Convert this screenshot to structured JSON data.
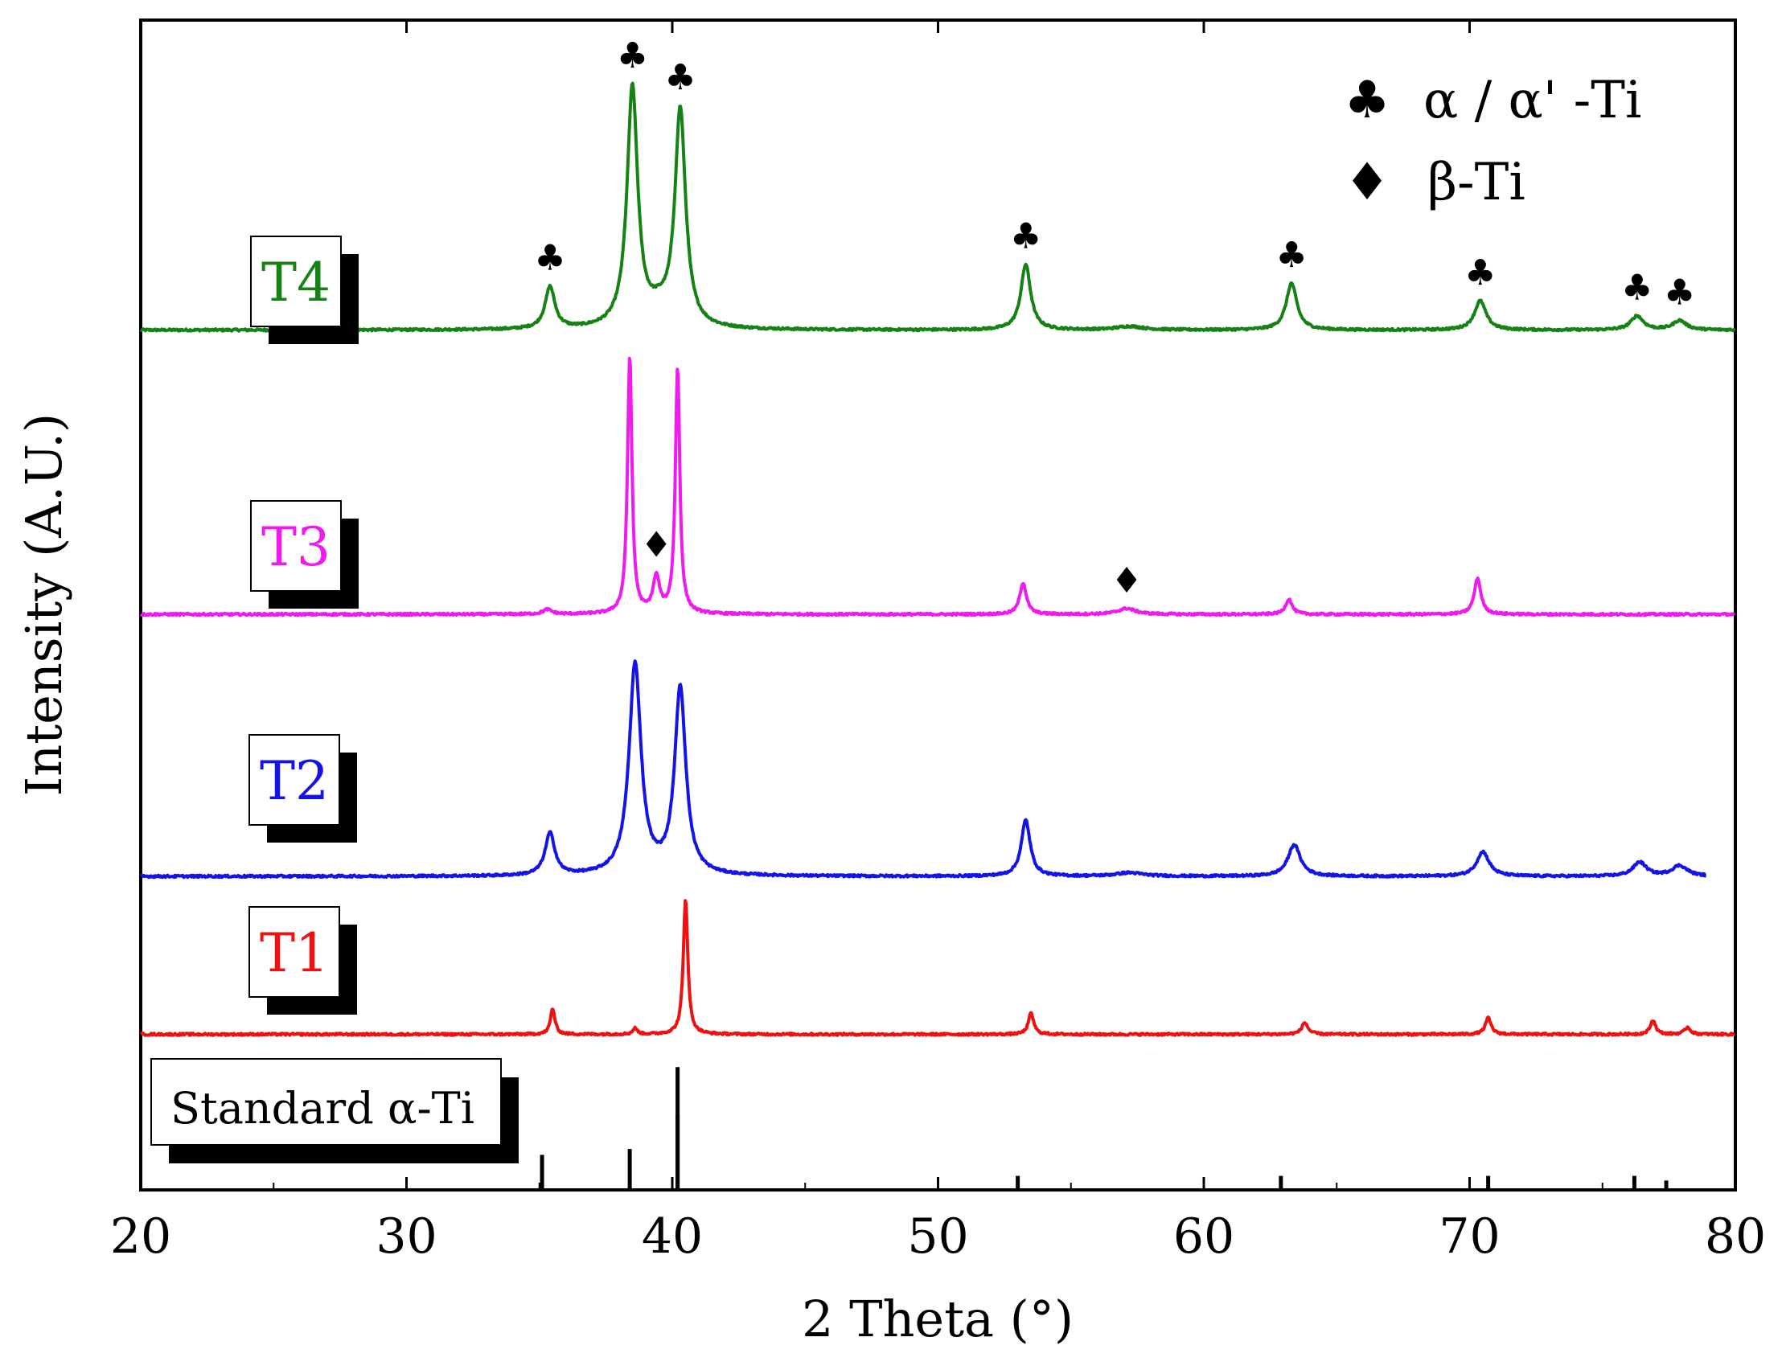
{
  "chart_data": {
    "type": "line",
    "title": "",
    "xlabel": "2 Theta (°)",
    "ylabel": "Intensity (A.U.)",
    "xlim": [
      20,
      80
    ],
    "xticks": [
      20,
      30,
      40,
      50,
      60,
      70,
      80
    ],
    "yticks": [],
    "series": [
      {
        "name": "T4",
        "color": "#168216",
        "offset": 0.735,
        "peaks": [
          {
            "x": 35.4,
            "h": 0.036,
            "w": 0.22
          },
          {
            "x": 38.5,
            "h": 0.205,
            "w": 0.24
          },
          {
            "x": 40.3,
            "h": 0.185,
            "w": 0.24
          },
          {
            "x": 39.5,
            "h": 0.012,
            "w": 0.5
          },
          {
            "x": 53.3,
            "h": 0.056,
            "w": 0.22
          },
          {
            "x": 57.2,
            "h": 0.003,
            "w": 0.6
          },
          {
            "x": 63.3,
            "h": 0.04,
            "w": 0.24
          },
          {
            "x": 70.4,
            "h": 0.025,
            "w": 0.26
          },
          {
            "x": 76.3,
            "h": 0.012,
            "w": 0.28
          },
          {
            "x": 77.9,
            "h": 0.008,
            "w": 0.3
          }
        ]
      },
      {
        "name": "T3",
        "color": "#ee1aee",
        "offset": 0.492,
        "peaks": [
          {
            "x": 35.3,
            "h": 0.004,
            "w": 0.2
          },
          {
            "x": 38.4,
            "h": 0.22,
            "w": 0.1
          },
          {
            "x": 39.4,
            "h": 0.03,
            "w": 0.15
          },
          {
            "x": 40.2,
            "h": 0.21,
            "w": 0.1
          },
          {
            "x": 53.2,
            "h": 0.027,
            "w": 0.15
          },
          {
            "x": 57.1,
            "h": 0.005,
            "w": 0.4
          },
          {
            "x": 63.2,
            "h": 0.013,
            "w": 0.15
          },
          {
            "x": 70.3,
            "h": 0.031,
            "w": 0.15
          }
        ]
      },
      {
        "name": "T2",
        "color": "#1414e6",
        "offset": 0.268,
        "peaks": [
          {
            "x": 35.4,
            "h": 0.036,
            "w": 0.22
          },
          {
            "x": 38.6,
            "h": 0.18,
            "w": 0.27
          },
          {
            "x": 40.3,
            "h": 0.16,
            "w": 0.25
          },
          {
            "x": 53.3,
            "h": 0.048,
            "w": 0.2
          },
          {
            "x": 57.2,
            "h": 0.003,
            "w": 0.6
          },
          {
            "x": 63.4,
            "h": 0.027,
            "w": 0.28
          },
          {
            "x": 70.5,
            "h": 0.021,
            "w": 0.28
          },
          {
            "x": 76.4,
            "h": 0.012,
            "w": 0.3
          },
          {
            "x": 77.9,
            "h": 0.009,
            "w": 0.35
          }
        ]
      },
      {
        "name": "T1",
        "color": "#ee1111",
        "offset": 0.133,
        "peaks": [
          {
            "x": 35.5,
            "h": 0.022,
            "w": 0.1
          },
          {
            "x": 38.6,
            "h": 0.005,
            "w": 0.1
          },
          {
            "x": 40.5,
            "h": 0.116,
            "w": 0.1
          },
          {
            "x": 53.5,
            "h": 0.018,
            "w": 0.12
          },
          {
            "x": 63.8,
            "h": 0.01,
            "w": 0.14
          },
          {
            "x": 70.7,
            "h": 0.014,
            "w": 0.13
          },
          {
            "x": 76.9,
            "h": 0.012,
            "w": 0.12
          },
          {
            "x": 78.2,
            "h": 0.006,
            "w": 0.13
          }
        ]
      }
    ],
    "reference": {
      "label": "Standard α-Ti",
      "lines": [
        {
          "x": 35.1,
          "h": 0.03
        },
        {
          "x": 38.4,
          "h": 0.035
        },
        {
          "x": 40.2,
          "h": 0.105
        },
        {
          "x": 40.2,
          "h": 0.065
        },
        {
          "x": 53.0,
          "h": 0.012
        },
        {
          "x": 62.9,
          "h": 0.012
        },
        {
          "x": 70.7,
          "h": 0.012
        },
        {
          "x": 76.2,
          "h": 0.012
        },
        {
          "x": 77.4,
          "h": 0.008
        }
      ]
    },
    "phase_markers": [
      {
        "symbol": "♣",
        "series": "T4",
        "x": 35.4
      },
      {
        "symbol": "♣",
        "series": "T4",
        "x": 38.5
      },
      {
        "symbol": "♣",
        "series": "T4",
        "x": 40.3
      },
      {
        "symbol": "♣",
        "series": "T4",
        "x": 53.3
      },
      {
        "symbol": "♣",
        "series": "T4",
        "x": 63.3
      },
      {
        "symbol": "♣",
        "series": "T4",
        "x": 70.4
      },
      {
        "symbol": "♣",
        "series": "T4",
        "x": 76.3
      },
      {
        "symbol": "♣",
        "series": "T4",
        "x": 77.9
      },
      {
        "symbol": "♦",
        "series": "T3",
        "x": 39.4
      },
      {
        "symbol": "♦",
        "series": "T3",
        "x": 57.1
      }
    ],
    "legend": [
      {
        "symbol": "♣",
        "label": "α / α' -Ti"
      },
      {
        "symbol": "♦",
        "label": "β-Ti"
      }
    ],
    "legend_position": "top-right",
    "grid": false
  }
}
